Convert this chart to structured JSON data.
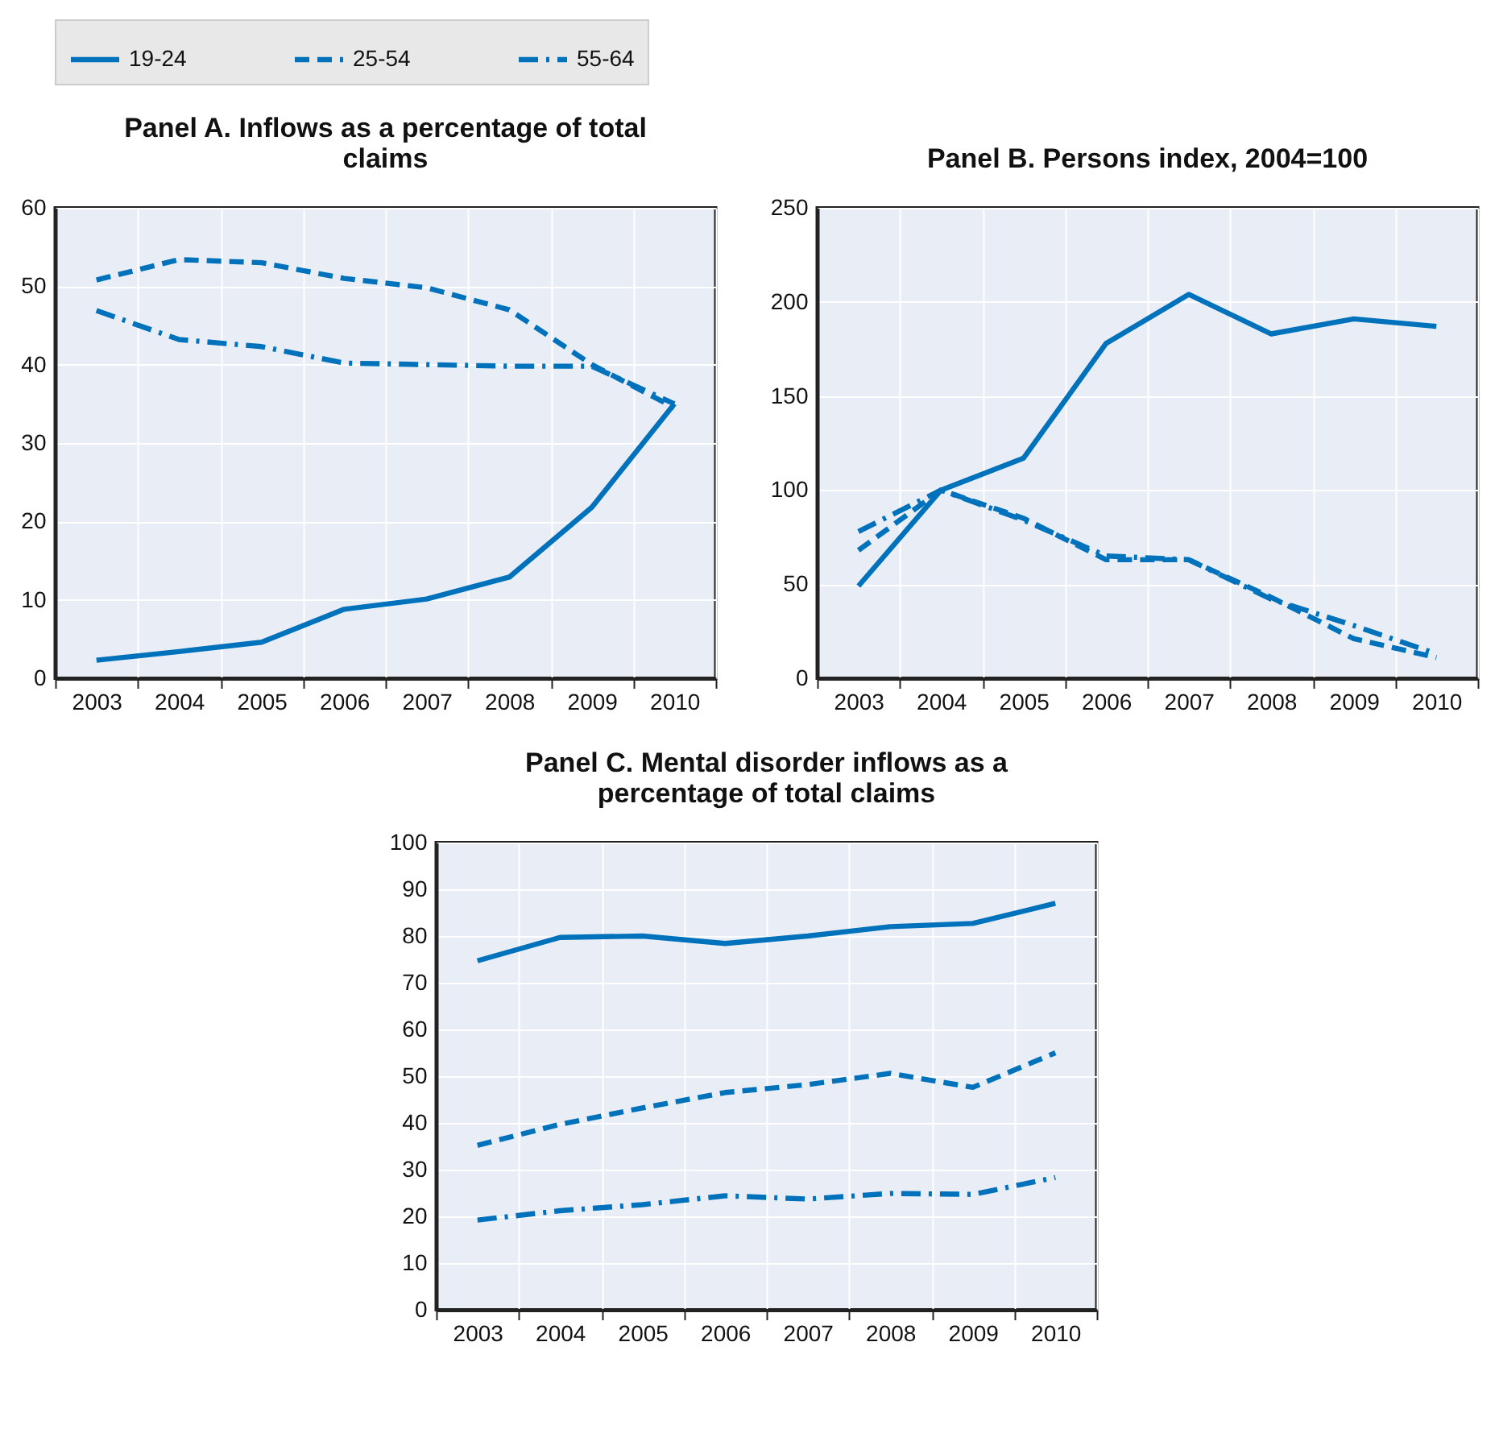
{
  "chart_data": [
    {
      "type": "line",
      "title": "Panel A. Inflows as a percentage of total claims",
      "categories": [
        "2003",
        "2004",
        "2005",
        "2006",
        "2007",
        "2008",
        "2009",
        "2010"
      ],
      "ylim": [
        0,
        60
      ],
      "yticks": [
        0,
        10,
        20,
        30,
        40,
        50,
        60
      ],
      "grid": true,
      "legend": "top",
      "series": [
        {
          "name": "19-24",
          "color": "#0072bc",
          "line_style": "solid",
          "values": [
            2.3,
            3.4,
            4.6,
            8.8,
            10.1,
            12.9,
            21.8,
            35
          ]
        },
        {
          "name": "25-54",
          "color": "#0072bc",
          "line_style": "dashed",
          "values": [
            50.8,
            53.4,
            53.0,
            51.0,
            49.8,
            47.0,
            40,
            34.5
          ]
        },
        {
          "name": "55-64",
          "color": "#0072bc",
          "line_style": "dashdot",
          "values": [
            46.9,
            43.2,
            42.3,
            40.2,
            40.0,
            39.8,
            39.8,
            35
          ]
        }
      ]
    },
    {
      "type": "line",
      "title": "Panel B.  Persons index, 2004=100",
      "categories": [
        "2003",
        "2004",
        "2005",
        "2006",
        "2007",
        "2008",
        "2009",
        "2010"
      ],
      "ylim": [
        0,
        250
      ],
      "yticks": [
        0,
        50,
        100,
        150,
        200,
        250
      ],
      "grid": true,
      "series": [
        {
          "name": "19-24",
          "color": "#0072bc",
          "line_style": "solid",
          "values": [
            49,
            100,
            117,
            178,
            204,
            183,
            191,
            187
          ]
        },
        {
          "name": "25-54",
          "color": "#0072bc",
          "line_style": "dashed",
          "values": [
            68,
            100,
            85,
            63,
            63,
            43,
            21,
            11
          ]
        },
        {
          "name": "55-64",
          "color": "#0072bc",
          "line_style": "dashdot",
          "values": [
            78,
            100,
            84,
            65,
            63,
            42,
            28,
            13
          ]
        }
      ]
    },
    {
      "type": "line",
      "title": "Panel C. Mental disorder inflows as a percentage of total claims",
      "categories": [
        "2003",
        "2004",
        "2005",
        "2006",
        "2007",
        "2008",
        "2009",
        "2010"
      ],
      "ylim": [
        0,
        100
      ],
      "yticks": [
        0,
        10,
        20,
        30,
        40,
        50,
        60,
        70,
        80,
        90,
        100
      ],
      "grid": true,
      "series": [
        {
          "name": "19-24",
          "color": "#0072bc",
          "line_style": "solid",
          "values": [
            74.7,
            79.7,
            80.0,
            78.4,
            80.0,
            82.0,
            82.7,
            87
          ]
        },
        {
          "name": "25-54",
          "color": "#0072bc",
          "line_style": "dashed",
          "values": [
            35.2,
            39.7,
            43.2,
            46.5,
            48.2,
            50.6,
            47.6,
            55
          ]
        },
        {
          "name": "55-64",
          "color": "#0072bc",
          "line_style": "dashdot",
          "values": [
            19.2,
            21.2,
            22.5,
            24.4,
            23.7,
            24.9,
            24.7,
            28.3
          ]
        }
      ]
    }
  ]
}
